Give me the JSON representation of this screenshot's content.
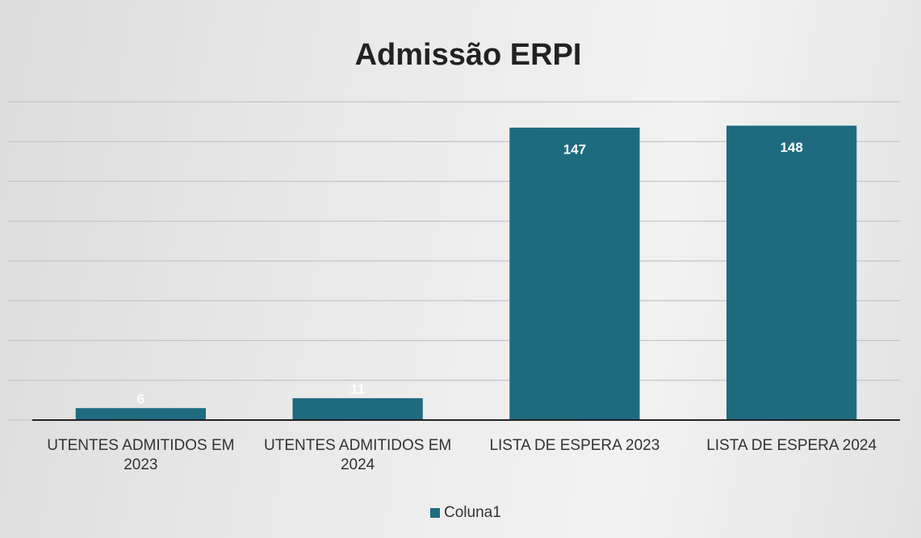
{
  "chart_data": {
    "type": "bar",
    "title": "Admissão ERPI",
    "categories": [
      "UTENTES ADMITIDOS EM 2023",
      "UTENTES ADMITIDOS EM 2024",
      "LISTA DE ESPERA 2023",
      "LISTA DE ESPERA 2024"
    ],
    "series": [
      {
        "name": "Coluna1",
        "color": "#1e6b80",
        "values": [
          6,
          11,
          147,
          148
        ]
      }
    ],
    "ylim": [
      0,
      160
    ],
    "yticks": [
      0,
      20,
      40,
      60,
      80,
      100,
      120,
      140,
      160
    ],
    "grid": true,
    "legend": "bottom"
  }
}
